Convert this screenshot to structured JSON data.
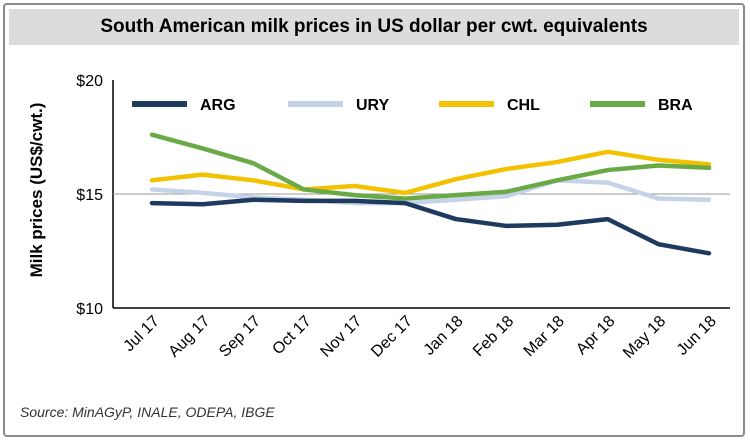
{
  "header": {
    "title": "South American milk prices in US dollar per cwt. equivalents"
  },
  "footer": {
    "source": "Source: MinAGyP, INALE, ODEPA, IBGE"
  },
  "chart_data": {
    "type": "line",
    "title": "South American milk prices in US dollar per cwt. equivalents",
    "xlabel": "",
    "ylabel": "Milk prices (US$/cwt.)",
    "ylim": [
      10,
      20
    ],
    "y_ticks": [
      10,
      15,
      20
    ],
    "y_tick_labels": [
      "$10",
      "$15",
      "$20"
    ],
    "grid": "horizontal at $15",
    "legend_position": "top",
    "categories": [
      "Jul 17",
      "Aug 17",
      "Sep 17",
      "Oct 17",
      "Nov 17",
      "Dec 17",
      "Jan 18",
      "Feb 18",
      "Mar 18",
      "Apr 18",
      "May 18",
      "Jun 18"
    ],
    "series": [
      {
        "name": "ARG",
        "color": "#1f3a5f",
        "values": [
          14.6,
          14.55,
          14.75,
          14.7,
          14.7,
          14.6,
          13.9,
          13.6,
          13.65,
          13.9,
          12.8,
          12.4
        ]
      },
      {
        "name": "URY",
        "color": "#c5d3e8",
        "values": [
          15.2,
          15.05,
          14.85,
          14.75,
          14.6,
          14.6,
          14.75,
          14.9,
          15.6,
          15.5,
          14.8,
          14.75
        ]
      },
      {
        "name": "CHL",
        "color": "#f2c100",
        "values": [
          15.6,
          15.85,
          15.6,
          15.2,
          15.35,
          15.05,
          15.65,
          16.1,
          16.4,
          16.85,
          16.5,
          16.3
        ]
      },
      {
        "name": "BRA",
        "color": "#6aaa46",
        "values": [
          17.6,
          17.0,
          16.35,
          15.2,
          14.95,
          14.8,
          14.95,
          15.1,
          15.6,
          16.05,
          16.25,
          16.15
        ]
      }
    ]
  }
}
